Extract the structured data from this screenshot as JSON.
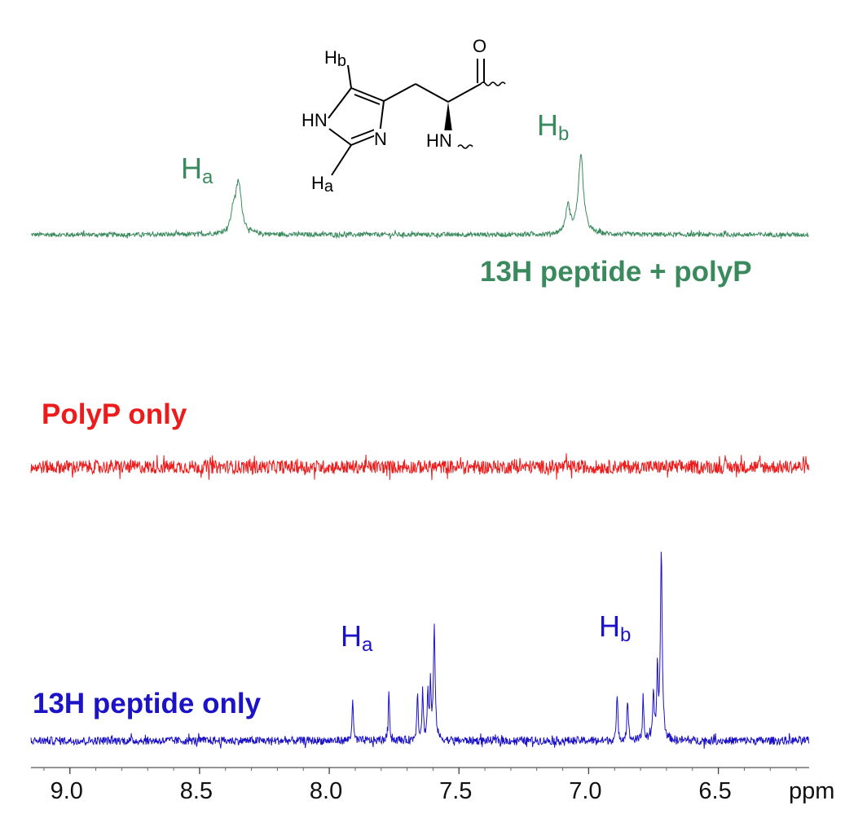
{
  "chart_data": {
    "type": "line",
    "x_axis": {
      "unit": "ppm",
      "range": [
        9.15,
        6.15
      ],
      "reversed": true,
      "ticks": [
        9.0,
        8.5,
        8.0,
        7.5,
        7.0,
        6.5
      ],
      "tick_labels": [
        "9.0",
        "8.5",
        "8.0",
        "7.5",
        "7.0",
        "6.5"
      ],
      "minor_step": 0.1
    },
    "grid": false,
    "series": [
      {
        "name": "13H peptide + polyP",
        "color": "#3a8a5e",
        "noise": 0.045,
        "peaks": [
          {
            "x": 8.35,
            "h": 1.0,
            "w": 0.014,
            "note": "Ha"
          },
          {
            "x": 8.37,
            "h": 0.35,
            "w": 0.01
          },
          {
            "x": 7.08,
            "h": 0.55,
            "w": 0.01
          },
          {
            "x": 7.03,
            "h": 1.55,
            "w": 0.012,
            "note": "Hb"
          }
        ],
        "peak_labels": [
          {
            "main": "H",
            "sub": "a",
            "x": 8.7
          },
          {
            "main": "H",
            "sub": "b",
            "x": 7.21
          }
        ]
      },
      {
        "name": "PolyP only",
        "color": "#ec1c1c",
        "noise": 0.14,
        "peaks": []
      },
      {
        "name": "13H peptide only",
        "color": "#1c12c6",
        "noise": 0.05,
        "peaks": [
          {
            "x": 7.91,
            "h": 0.5,
            "w": 0.003
          },
          {
            "x": 7.77,
            "h": 0.6,
            "w": 0.003
          },
          {
            "x": 7.66,
            "h": 0.6,
            "w": 0.003
          },
          {
            "x": 7.64,
            "h": 0.6,
            "w": 0.003
          },
          {
            "x": 7.62,
            "h": 0.55,
            "w": 0.003
          },
          {
            "x": 7.61,
            "h": 0.65,
            "w": 0.003
          },
          {
            "x": 7.595,
            "h": 1.35,
            "w": 0.004
          },
          {
            "x": 6.89,
            "h": 0.55,
            "w": 0.003
          },
          {
            "x": 6.85,
            "h": 0.55,
            "w": 0.003
          },
          {
            "x": 6.79,
            "h": 0.55,
            "w": 0.003
          },
          {
            "x": 6.75,
            "h": 0.6,
            "w": 0.003
          },
          {
            "x": 6.735,
            "h": 0.85,
            "w": 0.003
          },
          {
            "x": 6.72,
            "h": 2.35,
            "w": 0.004
          }
        ],
        "peak_labels": [
          {
            "main": "H",
            "sub": "a",
            "x": 7.97
          },
          {
            "main": "H",
            "sub": "b",
            "x": 7.07
          }
        ]
      }
    ],
    "inset_structure": {
      "type": "histidine residue skeletal structure",
      "labels": [
        "Hb",
        "HN",
        "N",
        "Ha",
        "O",
        "HN"
      ]
    }
  },
  "structure_text": {
    "hb": "H",
    "hb_sub": "b",
    "hn1": "HN",
    "n": "N",
    "ha": "H",
    "ha_sub": "a",
    "o": "O",
    "hn2": "HN"
  }
}
